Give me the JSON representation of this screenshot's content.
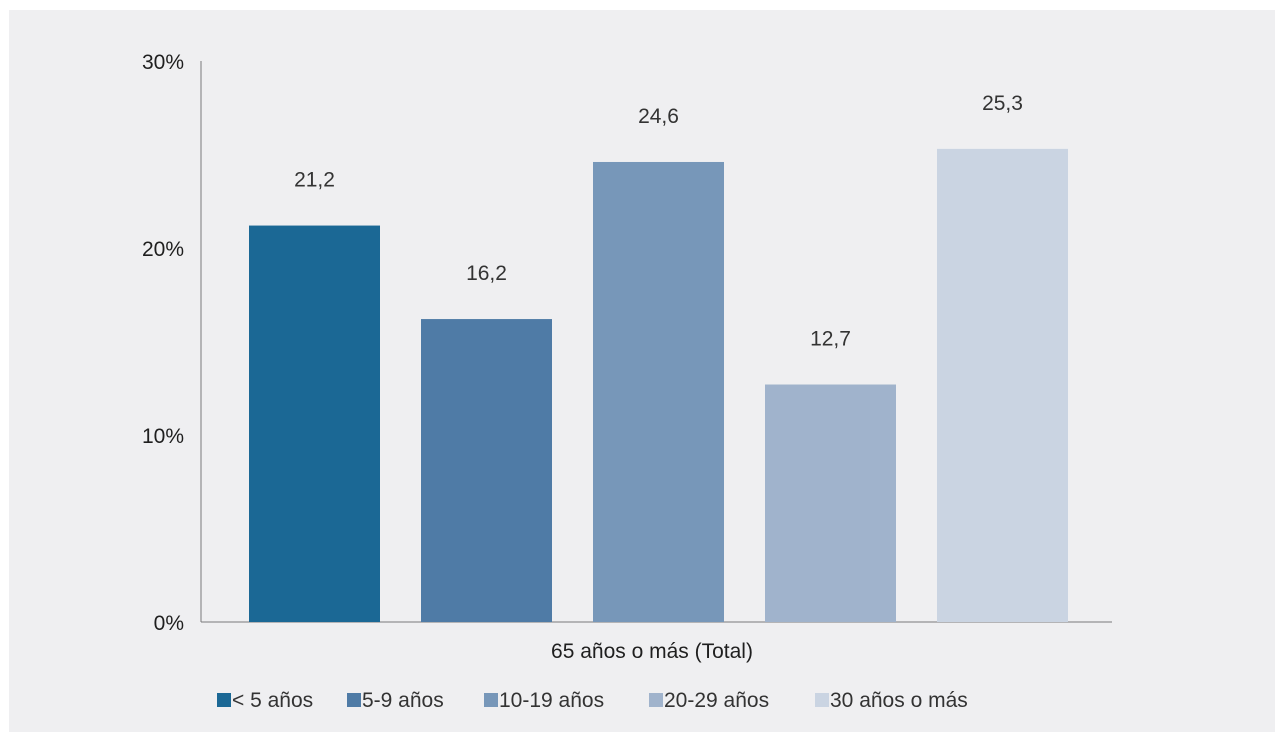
{
  "chart_data": {
    "type": "bar",
    "categories": [
      "65 años o más (Total)"
    ],
    "xlabel": "65 años o más (Total)",
    "ylabel": "",
    "ylim": [
      0,
      30
    ],
    "yticks": [
      "0%",
      "10%",
      "20%",
      "30%"
    ],
    "series": [
      {
        "name": "< 5 años",
        "values": [
          21.2
        ],
        "label": "21,2",
        "color": "#1b6895"
      },
      {
        "name": "5-9 años",
        "values": [
          16.2
        ],
        "label": "16,2",
        "color": "#4f7ba6"
      },
      {
        "name": "10-19 años",
        "values": [
          24.6
        ],
        "label": "24,6",
        "color": "#7797b9"
      },
      {
        "name": "20-29 años",
        "values": [
          12.7
        ],
        "label": "12,7",
        "color": "#a0b3cc"
      },
      {
        "name": "30 años o más",
        "values": [
          25.3
        ],
        "label": "25,3",
        "color": "#cad4e2"
      }
    ],
    "grid": false,
    "legend": "bottom"
  }
}
